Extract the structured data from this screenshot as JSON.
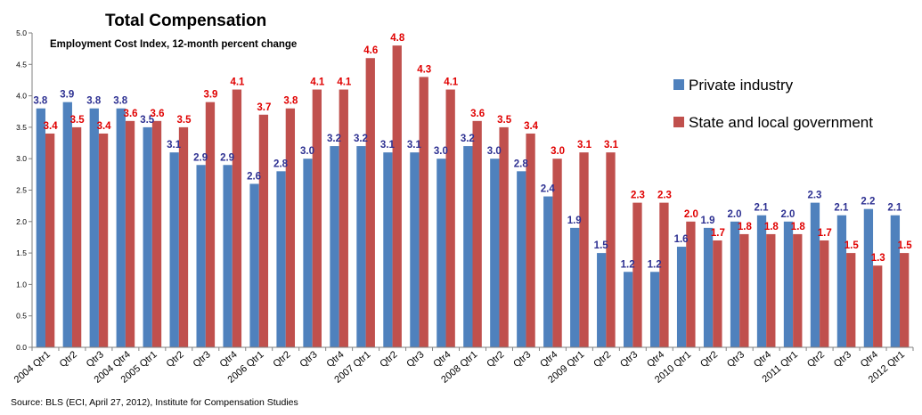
{
  "chart_data": {
    "type": "bar",
    "title": "Total Compensation",
    "subtitle": "Employment Cost Index, 12-month percent change",
    "source": "Source: BLS (ECI, April 27, 2012), Institute for Compensation Studies",
    "ylim": [
      0,
      5
    ],
    "ytick_step": 0.5,
    "ytick_labels": [
      "0.0",
      "0.5",
      "1.0",
      "1.5",
      "2.0",
      "2.5",
      "3.0",
      "3.5",
      "4.0",
      "4.5",
      "5.0"
    ],
    "grid": false,
    "legend_position": "right",
    "categories": [
      "2004 Qtr1",
      "Qtr2",
      "Qtr3",
      "2004 Qtr4",
      "2005 Qtr1",
      "Qtr2",
      "Qtr3",
      "Qtr4",
      "2006 Qtr1",
      "Qtr2",
      "Qtr3",
      "Qtr4",
      "2007 Qtr1",
      "Qtr2",
      "Qtr3",
      "Qtr4",
      "2008 Qtr1",
      "Qtr2",
      "Qtr3",
      "Qtr4",
      "2009 Qtr1",
      "Qtr2",
      "Qtr3",
      "Qtr4",
      "2010 Qtr1",
      "Qtr2",
      "Qtr3",
      "Qtr4",
      "2011 Qtr1",
      "Qtr2",
      "Qtr3",
      "Qtr4",
      "2012 Qtr1"
    ],
    "series": [
      {
        "name": "Private industry",
        "color": "#4f81bd",
        "label_color": "#2e3192",
        "values": [
          3.8,
          3.9,
          3.8,
          3.8,
          3.5,
          3.1,
          2.9,
          2.9,
          2.6,
          2.8,
          3.0,
          3.2,
          3.2,
          3.1,
          3.1,
          3.0,
          3.2,
          3.0,
          2.8,
          2.4,
          1.9,
          1.5,
          1.2,
          1.2,
          1.6,
          1.9,
          2.0,
          2.1,
          2.0,
          2.3,
          2.1,
          2.2,
          2.1
        ],
        "labels": [
          "3.8",
          "3.9",
          "3.8",
          "3.8",
          "3.5",
          "3.1",
          "2.9",
          "2.9",
          "2.6",
          "2.8",
          "3.0",
          "3.2",
          "3.2",
          "3.1",
          "3.1",
          "3.0",
          "3.2",
          "3.0",
          "2.8",
          "2.4",
          "1.9",
          "1.5",
          "1.2",
          "1.2",
          "1.6",
          "1.9",
          "2.0",
          "2.1",
          "2.0",
          "2.3",
          "2.1",
          "2.2",
          "2.1"
        ]
      },
      {
        "name": "State and local government",
        "color": "#c0504d",
        "label_color": "#e00000",
        "values": [
          3.4,
          3.5,
          3.4,
          3.6,
          3.6,
          3.5,
          3.9,
          4.1,
          3.7,
          3.8,
          4.1,
          4.1,
          4.6,
          4.8,
          4.3,
          4.1,
          3.6,
          3.5,
          3.4,
          3.0,
          3.1,
          3.1,
          2.3,
          2.3,
          2.0,
          1.7,
          1.8,
          1.8,
          1.8,
          1.7,
          1.5,
          1.3,
          1.5
        ],
        "labels": [
          "3.4",
          "3.5",
          "3.4",
          "3.6",
          "3.6",
          "3.5",
          "3.9",
          "4.1",
          "3.7",
          "3.8",
          "4.1",
          "4.1",
          "4.6",
          "4.8",
          "4.3",
          "4.1",
          "3.6",
          "3.5",
          "3.4",
          "3.0",
          "3.1",
          "3.1",
          "2.3",
          "2.3",
          "2.0",
          "1.7",
          "1.8",
          "1.8",
          "1.8",
          "1.7",
          "1.5",
          "1.3",
          "1.5"
        ]
      }
    ]
  }
}
